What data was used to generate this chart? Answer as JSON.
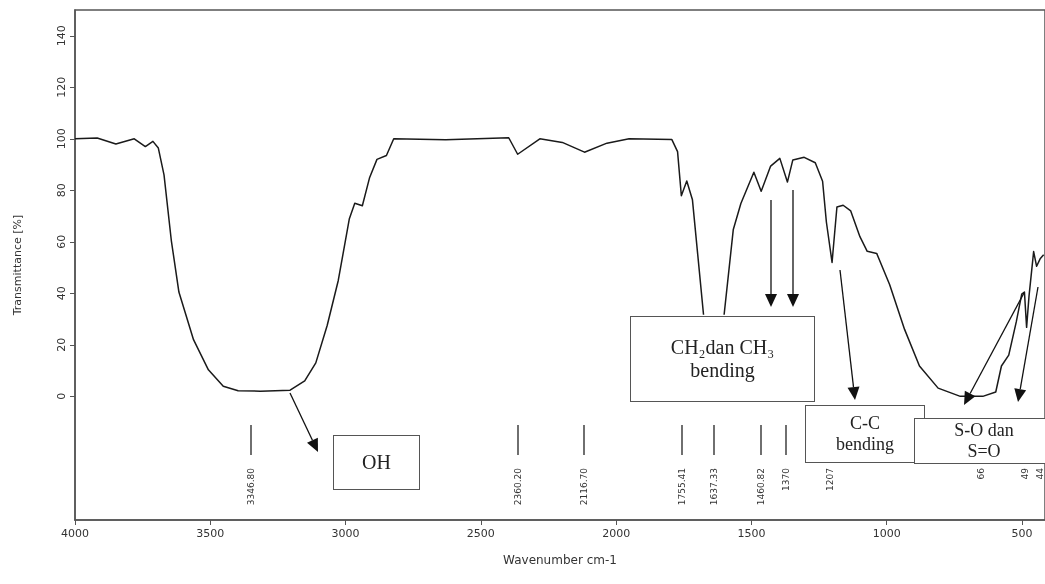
{
  "chart_data": {
    "type": "line",
    "xlabel": "Wavenumber cm-1",
    "ylabel": "Transmittance [%]",
    "xlim": [
      4000,
      415
    ],
    "xticks": [
      4000,
      3500,
      3000,
      2500,
      2000,
      1500,
      1000,
      500
    ],
    "ylim": [
      -48,
      150
    ],
    "yticks": [
      0,
      20,
      40,
      60,
      80,
      100,
      120,
      140
    ],
    "grid": false,
    "marker": "none",
    "line_style": "solid",
    "x": [
      4000,
      3918,
      3849,
      3781,
      3740,
      3712,
      3692,
      3671,
      3644,
      3616,
      3562,
      3507,
      3452,
      3397,
      3315,
      3205,
      3151,
      3110,
      3068,
      3027,
      2986,
      2966,
      2938,
      2911,
      2884,
      2849,
      2822,
      2630,
      2397,
      2364,
      2282,
      2199,
      2117,
      2034,
      1952,
      1794,
      1773,
      1759,
      1739,
      1718,
      1677,
      1640,
      1601,
      1567,
      1539,
      1491,
      1464,
      1429,
      1395,
      1367,
      1347,
      1305,
      1264,
      1237,
      1223,
      1202,
      1184,
      1161,
      1133,
      1099,
      1072,
      1037,
      989,
      934,
      879,
      810,
      728,
      645,
      597,
      576,
      549,
      521,
      501,
      491,
      483,
      474,
      457,
      446,
      433,
      420
    ],
    "series": [
      {
        "color": "#1a1a1a",
        "values": [
          100,
          100.3,
          98,
          100,
          97,
          99,
          96.4,
          86,
          60.5,
          40.5,
          22,
          10.3,
          3.9,
          2.2,
          2,
          2.4,
          6,
          13,
          27.5,
          45,
          69,
          75,
          74,
          85,
          92,
          93.5,
          100,
          99.6,
          100.4,
          94,
          100,
          98.6,
          94.8,
          98.3,
          100,
          99.7,
          95,
          77.9,
          83.6,
          76.3,
          31.7,
          null,
          31.7,
          64.8,
          74.9,
          87,
          79.6,
          89.4,
          92.4,
          83.2,
          91.8,
          92.8,
          90.7,
          83.5,
          67.7,
          52,
          73.5,
          74.2,
          72,
          62,
          56.3,
          55.5,
          43.3,
          26,
          11.8,
          3.2,
          0,
          0,
          1.7,
          11.8,
          16,
          29,
          39.7,
          40.5,
          26.8,
          39,
          56.2,
          50.5,
          53.4,
          55
        ]
      }
    ],
    "annotations": [
      "OH",
      "CH₂dan CH₃\nbending",
      "C-C\nbending",
      "S-O dan\nS=O",
      "3346.80",
      "2360.20",
      "2116.70",
      "1755.41",
      "1637.33",
      "1460.82",
      "1370",
      "1207",
      "66",
      "49",
      "44"
    ]
  }
}
